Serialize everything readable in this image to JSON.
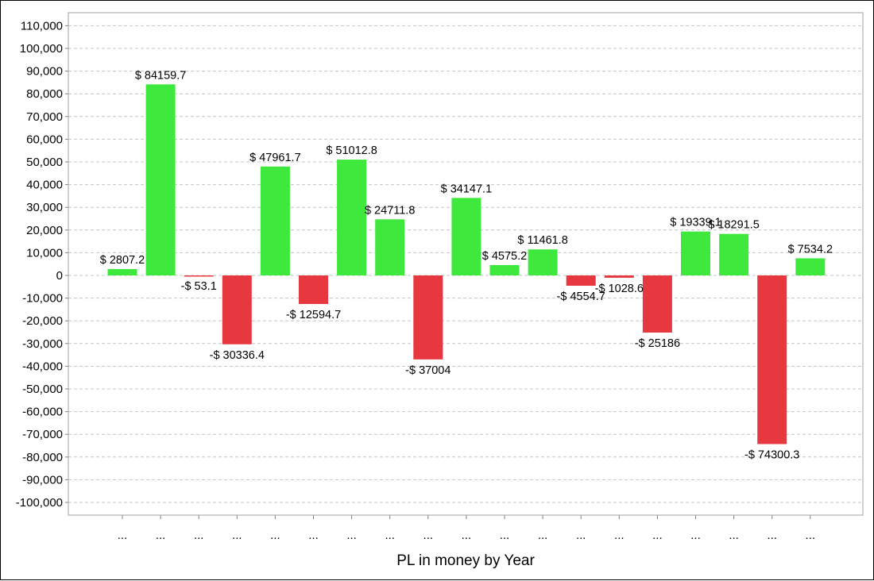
{
  "chart_data": {
    "type": "bar",
    "xlabel": "PL in money by Year",
    "ylabel": "",
    "ylim": [
      -110000,
      115000
    ],
    "y_ticks": [
      110000,
      100000,
      90000,
      80000,
      70000,
      60000,
      50000,
      40000,
      30000,
      20000,
      10000,
      0,
      -10000,
      -20000,
      -30000,
      -40000,
      -50000,
      -60000,
      -70000,
      -80000,
      -90000,
      -100000
    ],
    "y_tick_labels": [
      "110,000",
      "100,000",
      "90,000",
      "80,000",
      "70,000",
      "60,000",
      "50,000",
      "40,000",
      "30,000",
      "20,000",
      "10,000",
      "0",
      "-10,000",
      "-20,000",
      "-30,000",
      "-40,000",
      "-50,000",
      "-60,000",
      "-70,000",
      "-80,000",
      "-90,000",
      "-100,000"
    ],
    "grid": true,
    "categories": [
      "...",
      "...",
      "...",
      "...",
      "...",
      "...",
      "...",
      "...",
      "...",
      "...",
      "...",
      "...",
      "...",
      "...",
      "...",
      "...",
      "...",
      "...",
      "..."
    ],
    "values": [
      2807.2,
      84159.7,
      -53.1,
      -30336.4,
      47961.7,
      -12594.7,
      51012.8,
      24711.8,
      -37004,
      34147.1,
      4575.2,
      11461.8,
      -4554.7,
      -1028.6,
      -25186,
      19339.1,
      18291.5,
      -74300.3,
      7534.2
    ],
    "data_labels": [
      "$ 2807.2",
      "$ 84159.7",
      "-$ 53.1",
      "-$ 30336.4",
      "$ 47961.7",
      "-$ 12594.7",
      "$ 51012.8",
      "$ 24711.8",
      "-$ 37004",
      "$ 34147.1",
      "$ 4575.2",
      "$ 11461.8",
      "-$ 4554.7",
      "-$ 1028.6",
      "-$ 25186",
      "$ 19339.1",
      "$ 18291.5",
      "-$ 74300.3",
      "$ 7534.2"
    ],
    "colors": {
      "positive": "#3ee83c",
      "negative": "#e8383f",
      "grid": "#c4c4c4",
      "plot_border": "#a0a0a0"
    }
  }
}
